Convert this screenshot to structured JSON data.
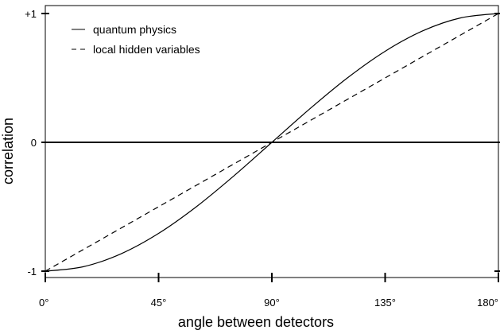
{
  "chart_data": {
    "type": "line",
    "title": "",
    "xlabel": "angle between detectors",
    "ylabel": "correlation",
    "xlim": [
      0,
      180
    ],
    "ylim": [
      -1,
      1
    ],
    "x_ticks": [
      {
        "value": 0,
        "label": "0°"
      },
      {
        "value": 45,
        "label": "45°"
      },
      {
        "value": 90,
        "label": "90°"
      },
      {
        "value": 135,
        "label": "135°"
      },
      {
        "value": 180,
        "label": "180°"
      }
    ],
    "y_ticks": [
      {
        "value": 1,
        "label": "+1"
      },
      {
        "value": 0,
        "label": "0"
      },
      {
        "value": -1,
        "label": "-1"
      }
    ],
    "grid": false,
    "zero_line": true,
    "legend_position": "top-left",
    "series": [
      {
        "name": "quantum physics",
        "style": "solid",
        "x": [
          0,
          15,
          30,
          45,
          60,
          75,
          90,
          105,
          120,
          135,
          150,
          165,
          180
        ],
        "y": [
          -1,
          -0.966,
          -0.866,
          -0.707,
          -0.5,
          -0.259,
          0,
          0.259,
          0.5,
          0.707,
          0.866,
          0.966,
          1
        ]
      },
      {
        "name": "local hidden variables",
        "style": "dashed",
        "x": [
          0,
          90,
          180
        ],
        "y": [
          -1,
          0,
          1
        ]
      }
    ]
  }
}
